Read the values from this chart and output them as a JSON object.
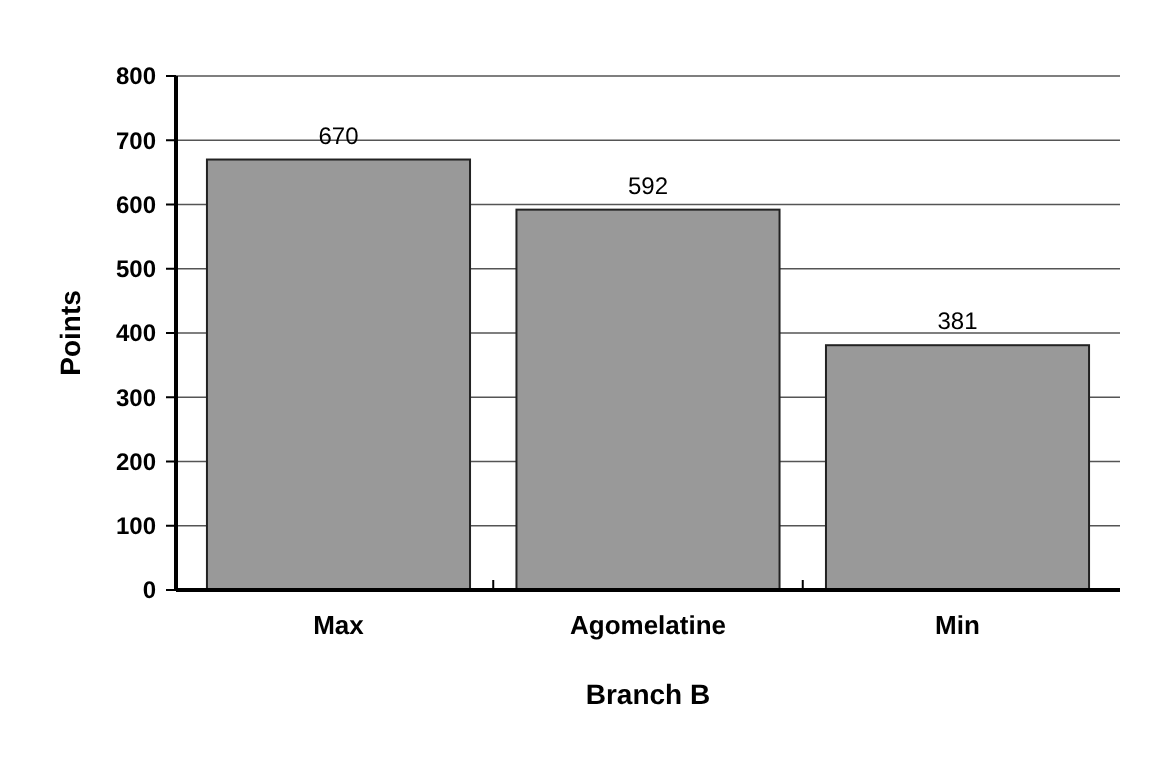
{
  "chart_data": {
    "type": "bar",
    "xlabel": "Branch B",
    "ylabel": "Points",
    "categories": [
      "Max",
      "Agomelatine",
      "Min"
    ],
    "values": [
      670,
      592,
      381
    ],
    "color": "#999999",
    "ylim": [
      0,
      800
    ],
    "yticks": [
      0,
      100,
      200,
      300,
      400,
      500,
      600,
      700,
      800
    ],
    "grid": "y",
    "data_labels": true
  }
}
